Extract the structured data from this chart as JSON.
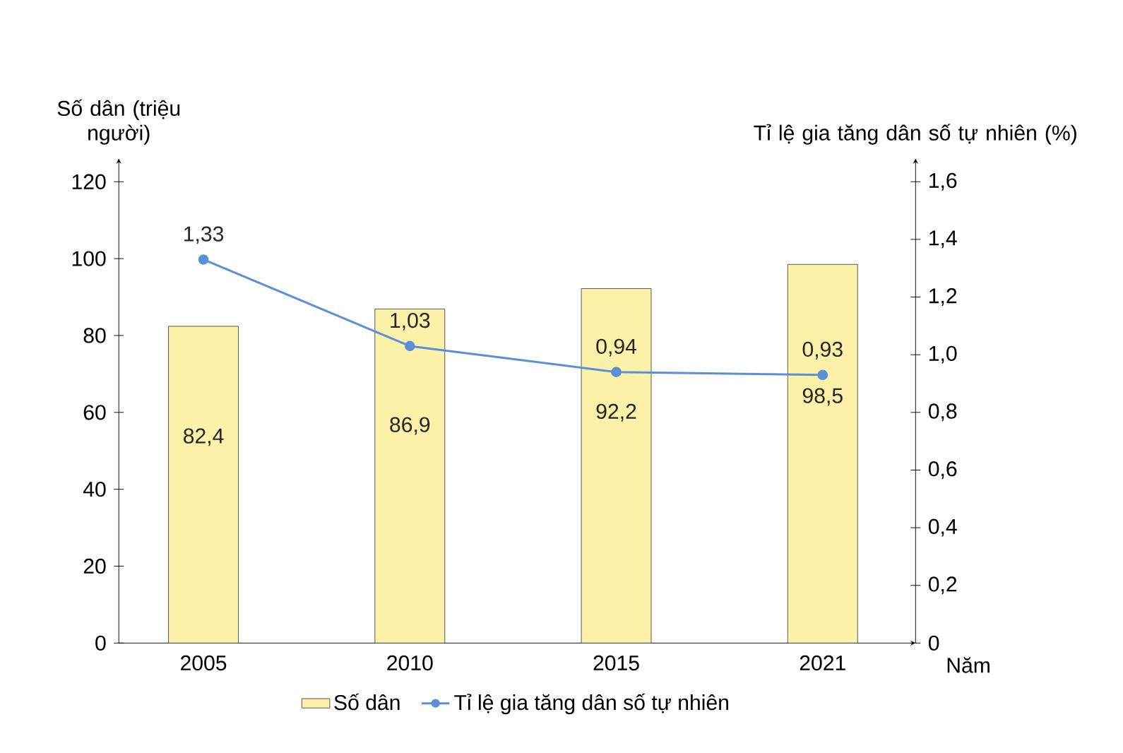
{
  "chart_data": {
    "type": "bar",
    "xlabel": "Năm",
    "ylabel": "Số dân (triệu người)",
    "y2label": "Tỉ lệ gia tăng dân số tự nhiên (%)",
    "categories": [
      "2005",
      "2010",
      "2015",
      "2021"
    ],
    "series": [
      {
        "name": "Số dân",
        "color": "#fbf1a8",
        "values": [
          82.4,
          86.9,
          92.2,
          98.5
        ],
        "value_labels": [
          "82,4",
          "86,9",
          "92,2",
          "98,5"
        ]
      },
      {
        "name": "Tỉ lệ gia tăng dân số tự nhiên",
        "type": "line",
        "axis": "y2",
        "color": "#5b8fd6",
        "marker": "circle",
        "values": [
          1.33,
          1.03,
          0.94,
          0.93
        ],
        "value_labels": [
          "1,33",
          "1,03",
          "0,94",
          "0,93"
        ]
      }
    ],
    "ylim": [
      0,
      126
    ],
    "yticks": [
      0,
      20,
      40,
      60,
      80,
      100,
      120
    ],
    "y2lim": [
      0,
      1.68
    ],
    "y2ticks": [
      {
        "value": 0,
        "label": "0"
      },
      {
        "value": 0.2,
        "label": "0,2"
      },
      {
        "value": 0.4,
        "label": "0,4"
      },
      {
        "value": 0.6,
        "label": "0,6"
      },
      {
        "value": 0.8,
        "label": "0,8"
      },
      {
        "value": 1.0,
        "label": "1,0"
      },
      {
        "value": 1.2,
        "label": "1,2"
      },
      {
        "value": 1.4,
        "label": "1,4"
      },
      {
        "value": 1.6,
        "label": "1,6"
      }
    ],
    "legend": "bottom",
    "grid": false
  }
}
